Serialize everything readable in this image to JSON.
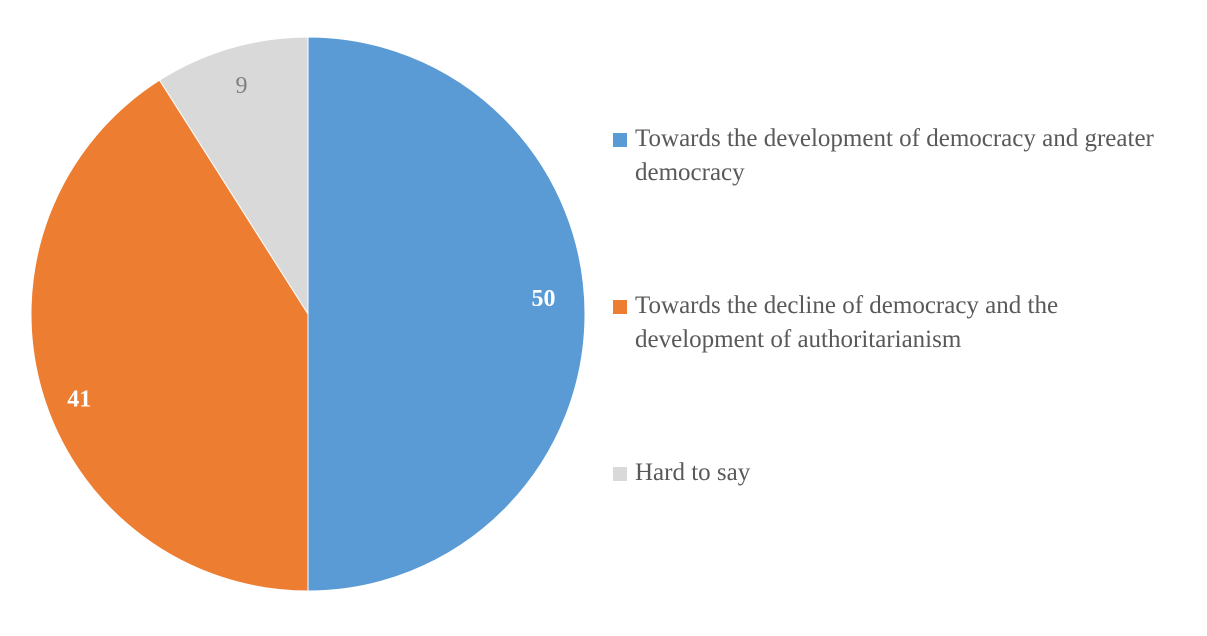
{
  "chart_data": {
    "type": "pie",
    "title": "",
    "categories": [
      "Towards the development of democracy and greater democracy",
      "Towards the decline of democracy and the development of authoritarianism",
      "Hard to say"
    ],
    "values": [
      50,
      41,
      9
    ],
    "labels": [
      "50",
      "41",
      "9"
    ],
    "colors": [
      "#5B9BD5",
      "#ED7D31",
      "#D9D9D9"
    ],
    "label_colors": [
      "#FFFFFF",
      "#FFFFFF",
      "#7F7F7F"
    ],
    "label_bold": [
      true,
      true,
      false
    ],
    "start": "top",
    "direction": "clockwise",
    "legend_position": "right"
  }
}
